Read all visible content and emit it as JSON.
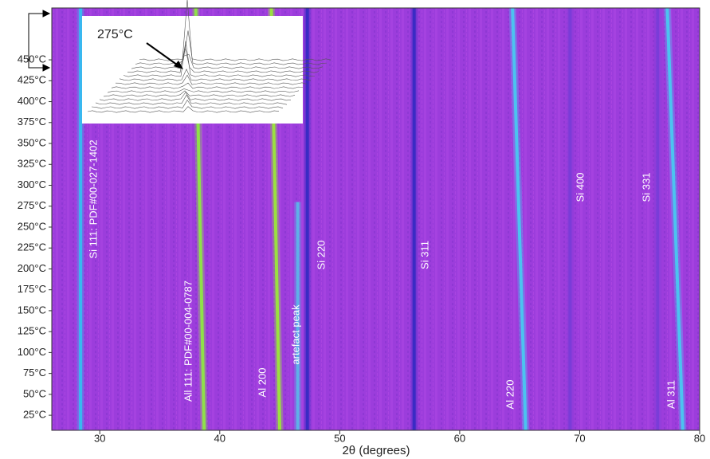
{
  "chart_data": {
    "type": "peak-map",
    "x_label": "2θ (degrees)",
    "xlim": [
      26,
      80
    ],
    "xticks": [
      30,
      40,
      50,
      60,
      70,
      80
    ],
    "ylim": [
      7,
      512
    ],
    "yticks": [
      {
        "value": 25,
        "label": "25°C"
      },
      {
        "value": 50,
        "label": "50°C"
      },
      {
        "value": 75,
        "label": "75°C"
      },
      {
        "value": 100,
        "label": "100°C"
      },
      {
        "value": 125,
        "label": "125°C"
      },
      {
        "value": 150,
        "label": "150°C"
      },
      {
        "value": 175,
        "label": "175°C"
      },
      {
        "value": 200,
        "label": "200°C"
      },
      {
        "value": 225,
        "label": "225°C"
      },
      {
        "value": 250,
        "label": "250°C"
      },
      {
        "value": 275,
        "label": "275°C"
      },
      {
        "value": 300,
        "label": "300°C"
      },
      {
        "value": 325,
        "label": "325°C"
      },
      {
        "value": 350,
        "label": "350°C"
      },
      {
        "value": 375,
        "label": "375°C"
      },
      {
        "value": 400,
        "label": "400°C"
      },
      {
        "value": 425,
        "label": "425°C"
      },
      {
        "value": 450,
        "label": "450°C"
      }
    ],
    "background": "#9c3ddc",
    "inset_label": "275°C",
    "series": [
      {
        "name": "Si 111: PDF#00-027-1402",
        "color": "#39b8f0",
        "x": [
          28.4,
          28.4
        ],
        "values": [
          7,
          512
        ]
      },
      {
        "name": "All 111: PDF#00-004-0787",
        "color": "#8fe04a",
        "x": [
          38.7,
          38.0
        ],
        "values": [
          7,
          512
        ]
      },
      {
        "name": "Al 200",
        "color": "#9be041",
        "x": [
          45.0,
          44.3
        ],
        "values": [
          7,
          512
        ]
      },
      {
        "name": "artefact peak",
        "color": "#5fb0e8",
        "x": [
          46.5,
          46.5
        ],
        "values": [
          7,
          280
        ]
      },
      {
        "name": "Si 220",
        "color": "#3a2bc4",
        "x": [
          47.3,
          47.3
        ],
        "values": [
          7,
          512
        ]
      },
      {
        "name": "Si 311",
        "color": "#3a2bc4",
        "x": [
          56.2,
          56.2
        ],
        "values": [
          7,
          512
        ]
      },
      {
        "name": "Al 220",
        "color": "#4cc3f0",
        "x": [
          65.5,
          64.4
        ],
        "values": [
          7,
          512
        ]
      },
      {
        "name": "Si 400",
        "color": "#7a3cd8",
        "x": [
          69.2,
          69.2
        ],
        "values": [
          7,
          512
        ]
      },
      {
        "name": "Si 331",
        "color": "#7a3cd8",
        "x": [
          76.5,
          76.5
        ],
        "values": [
          7,
          512
        ]
      },
      {
        "name": "Al 311",
        "color": "#4cc3f0",
        "x": [
          78.6,
          77.3
        ],
        "values": [
          7,
          512
        ]
      }
    ]
  }
}
